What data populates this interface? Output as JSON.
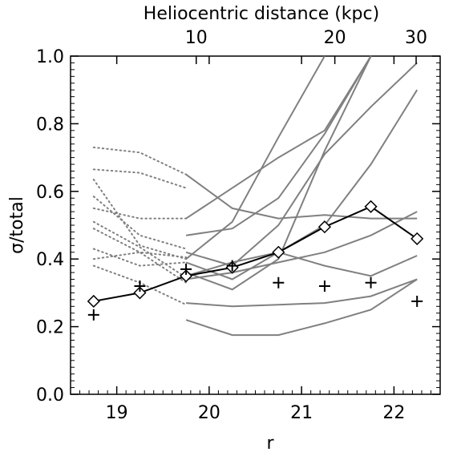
{
  "chart_data": {
    "type": "line",
    "title": "",
    "xlabel": "r",
    "ylabel": "σ/total",
    "top_axis_label": "Heliocentric distance (kpc)",
    "xlim": [
      18.5,
      22.5
    ],
    "ylim": [
      0.0,
      1.0
    ],
    "grid": false,
    "x_ticks": [
      19,
      20,
      21,
      22
    ],
    "x_tick_labels": [
      "19",
      "20",
      "21",
      "22"
    ],
    "y_ticks": [
      0.0,
      0.2,
      0.4,
      0.6,
      0.8,
      1.0
    ],
    "y_tick_labels": [
      "0.0",
      "0.2",
      "0.4",
      "0.6",
      "0.8",
      "1.0"
    ],
    "top_ticks": [
      {
        "label": "10",
        "r": 19.86
      },
      {
        "label": "20",
        "r": 21.36
      },
      {
        "label": "30",
        "r": 22.24
      }
    ],
    "colors": {
      "gray": "#808080",
      "black": "#000000"
    },
    "dotted_gray_series": [
      {
        "x": [
          18.75,
          19.25,
          19.75
        ],
        "y": [
          0.73,
          0.715,
          0.65
        ]
      },
      {
        "x": [
          18.75,
          19.25,
          19.75
        ],
        "y": [
          0.665,
          0.655,
          0.61
        ]
      },
      {
        "x": [
          18.75,
          19.25,
          19.75
        ],
        "y": [
          0.635,
          0.44,
          0.4
        ]
      },
      {
        "x": [
          18.75,
          19.25,
          19.75
        ],
        "y": [
          0.585,
          0.47,
          0.43
        ]
      },
      {
        "x": [
          18.75,
          19.25,
          19.75
        ],
        "y": [
          0.55,
          0.52,
          0.52
        ]
      },
      {
        "x": [
          18.75,
          19.25,
          19.75
        ],
        "y": [
          0.51,
          0.435,
          0.345
        ]
      },
      {
        "x": [
          18.75,
          19.25,
          19.75
        ],
        "y": [
          0.49,
          0.42,
          0.33
        ]
      },
      {
        "x": [
          18.75,
          19.25,
          19.75
        ],
        "y": [
          0.43,
          0.38,
          0.39
        ]
      },
      {
        "x": [
          18.75,
          19.25,
          19.75
        ],
        "y": [
          0.4,
          0.42,
          0.405
        ]
      },
      {
        "x": [
          18.75,
          19.25,
          19.75
        ],
        "y": [
          0.38,
          0.33,
          0.265
        ]
      }
    ],
    "gray_series": [
      {
        "x": [
          19.75,
          20.25,
          20.75,
          21.25,
          21.75
        ],
        "y": [
          0.52,
          0.61,
          0.7,
          0.78,
          1.02
        ]
      },
      {
        "x": [
          19.75,
          20.25,
          20.75,
          21.25,
          21.75,
          22.25
        ],
        "y": [
          0.65,
          0.55,
          0.52,
          0.53,
          0.52,
          0.52
        ]
      },
      {
        "x": [
          19.75,
          20.25,
          20.75,
          21.25,
          21.75
        ],
        "y": [
          0.47,
          0.49,
          0.58,
          0.77,
          1.02
        ]
      },
      {
        "x": [
          19.75,
          20.25,
          20.75,
          21.25
        ],
        "y": [
          0.4,
          0.51,
          0.76,
          1.02
        ]
      },
      {
        "x": [
          19.75,
          20.25,
          20.75,
          21.25,
          21.75,
          22.25
        ],
        "y": [
          0.42,
          0.38,
          0.5,
          0.71,
          0.85,
          0.98
        ]
      },
      {
        "x": [
          19.75,
          20.25,
          20.75,
          21.25,
          21.75
        ],
        "y": [
          0.36,
          0.31,
          0.4,
          0.72,
          1.02
        ]
      },
      {
        "x": [
          19.75,
          20.25,
          20.75,
          21.25,
          21.75,
          22.25
        ],
        "y": [
          0.35,
          0.39,
          0.42,
          0.5,
          0.68,
          0.9
        ]
      },
      {
        "x": [
          19.75,
          20.25,
          20.75,
          21.25,
          21.75,
          22.25
        ],
        "y": [
          0.39,
          0.34,
          0.42,
          0.38,
          0.35,
          0.41
        ]
      },
      {
        "x": [
          19.75,
          20.25,
          20.75,
          21.25,
          21.75,
          22.25
        ],
        "y": [
          0.34,
          0.36,
          0.39,
          0.42,
          0.47,
          0.54
        ]
      },
      {
        "x": [
          19.75,
          20.25,
          20.75,
          21.25,
          21.75,
          22.25
        ],
        "y": [
          0.27,
          0.26,
          0.265,
          0.27,
          0.29,
          0.34
        ]
      },
      {
        "x": [
          19.75,
          20.25,
          20.75,
          21.25,
          21.75,
          22.25
        ],
        "y": [
          0.22,
          0.175,
          0.175,
          0.21,
          0.25,
          0.34
        ]
      }
    ],
    "diamond_series": {
      "x": [
        18.75,
        19.25,
        19.75,
        20.25,
        20.75,
        21.25,
        21.75,
        22.25
      ],
      "y": [
        0.275,
        0.3,
        0.35,
        0.375,
        0.42,
        0.495,
        0.555,
        0.46
      ]
    },
    "plus_markers": {
      "x": [
        18.75,
        19.25,
        19.75,
        20.25,
        20.75,
        21.25,
        21.75,
        22.25
      ],
      "y": [
        0.235,
        0.32,
        0.37,
        0.38,
        0.33,
        0.32,
        0.33,
        0.275
      ]
    }
  }
}
